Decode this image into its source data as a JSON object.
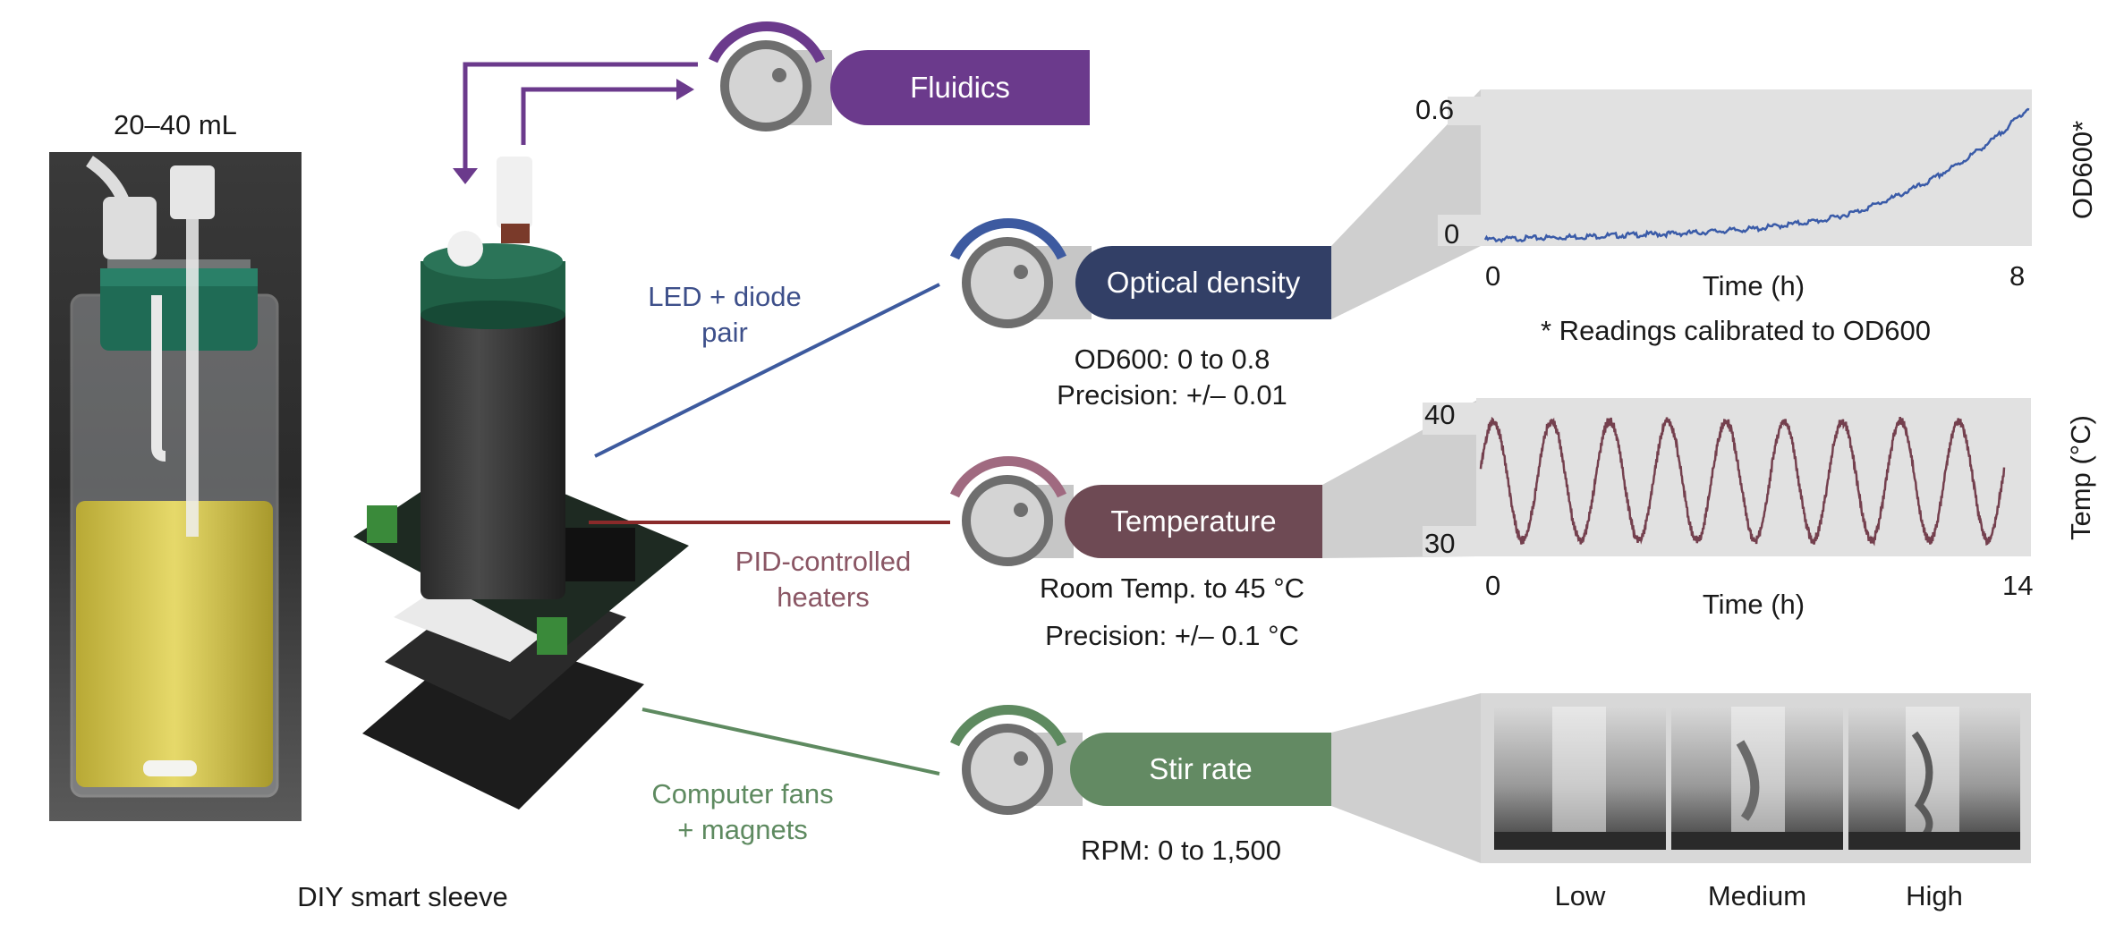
{
  "vial": {
    "volume_label": "20–40 mL"
  },
  "sleeve": {
    "caption": "DIY smart sleeve"
  },
  "components": {
    "led": {
      "line1": "LED + diode",
      "line2": "pair",
      "color": "#3d5a9e"
    },
    "heaters": {
      "line1": "PID-controlled",
      "line2": "heaters",
      "color": "#8a4f5c"
    },
    "fans": {
      "line1": "Computer fans",
      "line2": "+ magnets",
      "color": "#5e8a60"
    }
  },
  "modules": {
    "fluidics": {
      "label": "Fluidics",
      "color": "#6b3a8c"
    },
    "optical": {
      "label": "Optical density",
      "color": "#323f66",
      "spec1": "OD600: 0 to 0.8",
      "spec2": "Precision: +/– 0.01"
    },
    "temperature": {
      "label": "Temperature",
      "color": "#6e4a54",
      "spec1": "Room Temp. to 45 °C",
      "spec2": "Precision: +/– 0.1 °C"
    },
    "stir": {
      "label": "Stir rate",
      "color": "#638a63",
      "spec1": "RPM: 0 to 1,500"
    }
  },
  "chart_data": [
    {
      "type": "line",
      "xlabel": "Time (h)",
      "ylabel": "OD600*",
      "footnote": "* Readings calibrated to OD600",
      "xlim": [
        0,
        8
      ],
      "ylim": [
        0,
        0.6
      ],
      "x_ticks": [
        "0",
        "8"
      ],
      "y_ticks": [
        "0.6",
        "0"
      ],
      "color": "#3a5ba8",
      "series": [
        {
          "x": [
            0,
            1,
            2,
            3,
            4,
            5,
            5.5,
            6,
            6.5,
            7,
            7.5,
            8
          ],
          "y": [
            0.0,
            0.01,
            0.02,
            0.03,
            0.05,
            0.09,
            0.13,
            0.19,
            0.26,
            0.35,
            0.46,
            0.6
          ]
        }
      ]
    },
    {
      "type": "line",
      "xlabel": "Time (h)",
      "ylabel": "Temp (°C)",
      "xlim": [
        0,
        14
      ],
      "ylim": [
        30,
        40
      ],
      "x_ticks": [
        "0",
        "14"
      ],
      "y_ticks": [
        "40",
        "30"
      ],
      "color": "#74404e",
      "oscillation": {
        "cycles": 9,
        "min": 30.4,
        "max": 39.4
      }
    }
  ],
  "stir_images": {
    "low": "Low",
    "medium": "Medium",
    "high": "High"
  }
}
